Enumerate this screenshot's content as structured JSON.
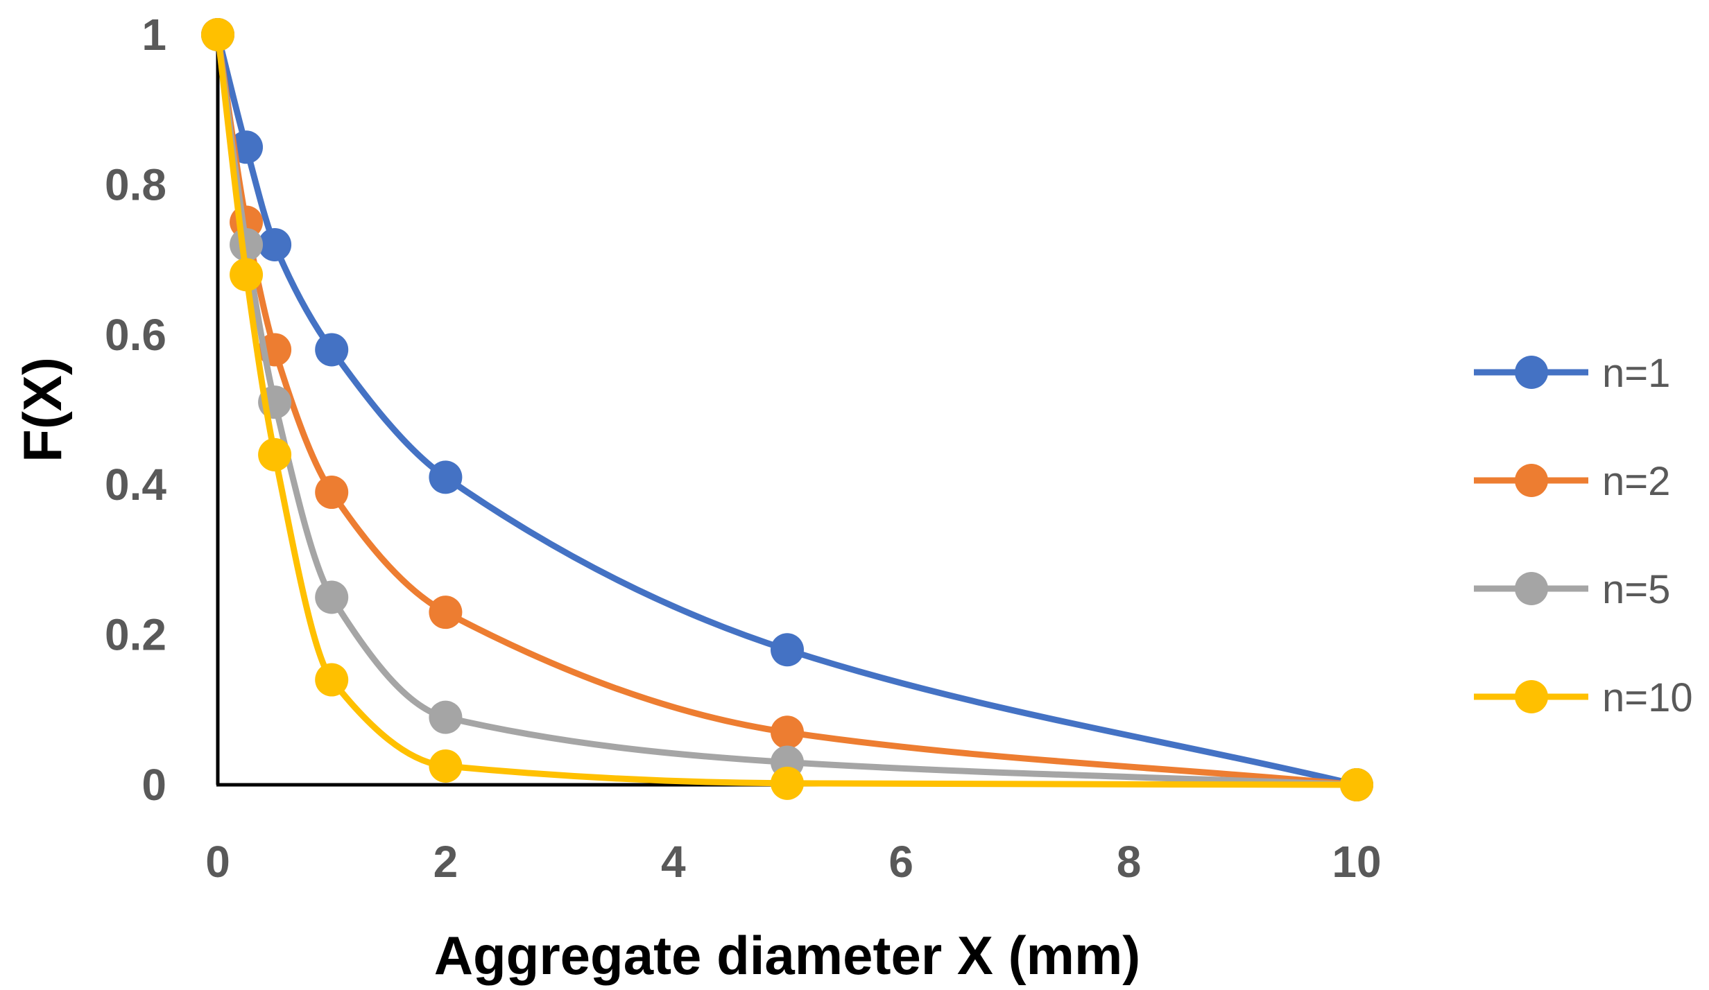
{
  "chart_data": {
    "type": "line",
    "xlabel": "Aggregate diameter X (mm)",
    "ylabel": "F(X)",
    "xlim": [
      0,
      10
    ],
    "ylim": [
      0,
      1
    ],
    "x_ticks": [
      "0",
      "2",
      "4",
      "6",
      "8",
      "10"
    ],
    "y_ticks": [
      "0",
      "0.2",
      "0.4",
      "0.6",
      "0.8",
      "1"
    ],
    "grid": false,
    "smooth": true,
    "markers": true,
    "legend_position": "right",
    "x": [
      0,
      0.25,
      0.5,
      1,
      2,
      5,
      10
    ],
    "series": [
      {
        "name": "n=1",
        "color": "#4472C4",
        "values": [
          1,
          0.85,
          0.72,
          0.58,
          0.41,
          0.18,
          0
        ]
      },
      {
        "name": "n=2",
        "color": "#ED7D31",
        "values": [
          1,
          0.75,
          0.58,
          0.39,
          0.23,
          0.07,
          0
        ]
      },
      {
        "name": "n=5",
        "color": "#A5A5A5",
        "values": [
          1,
          0.72,
          0.51,
          0.25,
          0.09,
          0.03,
          0
        ]
      },
      {
        "name": "n=10",
        "color": "#FFC000",
        "values": [
          1,
          0.68,
          0.44,
          0.14,
          0.025,
          0.002,
          0
        ]
      }
    ]
  }
}
